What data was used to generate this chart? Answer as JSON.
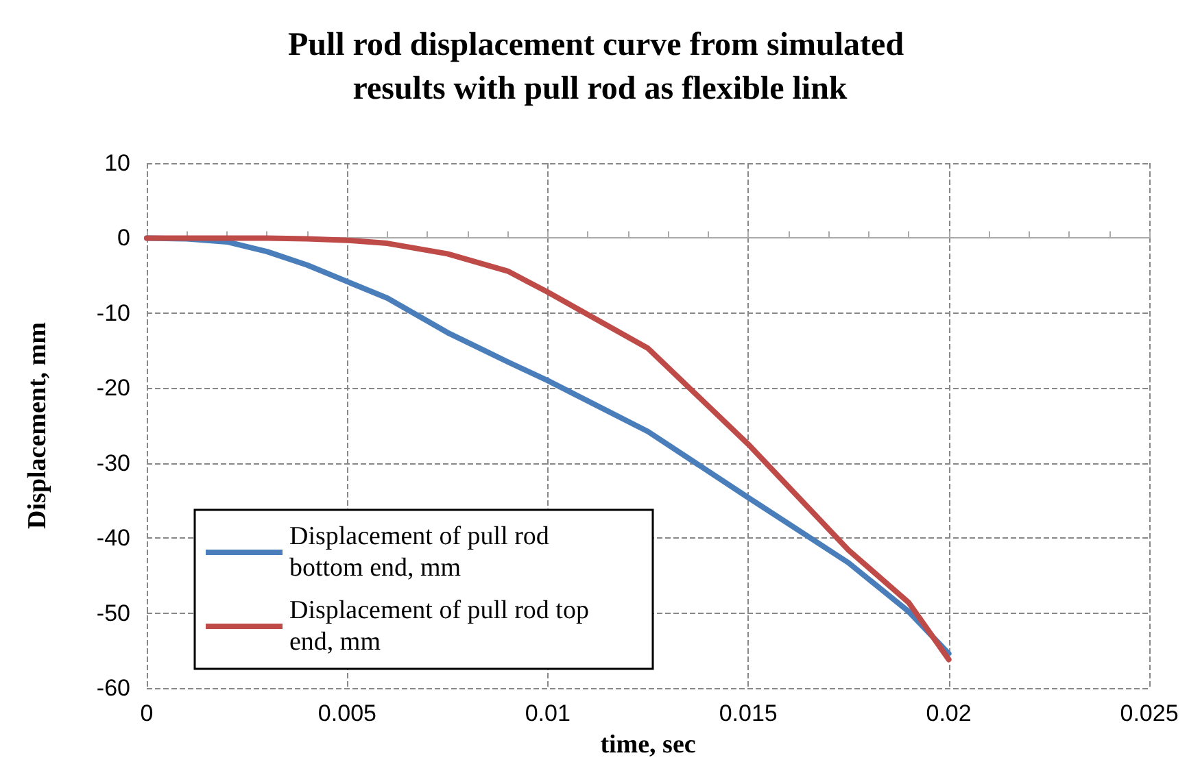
{
  "chart_data": {
    "type": "line",
    "title": "Pull rod displacement curve from simulated results with pull rod as flexible link",
    "xlabel": "time, sec",
    "ylabel": "Displacement, mm",
    "x": [
      0,
      0.001,
      0.002,
      0.003,
      0.004,
      0.005,
      0.006,
      0.0075,
      0.009,
      0.01,
      0.0125,
      0.015,
      0.0175,
      0.019,
      0.02
    ],
    "series": [
      {
        "name": "Displacement of pull rod bottom end, mm",
        "color": "#4a7ebb",
        "values": [
          0,
          -0.1,
          -0.5,
          -1.8,
          -3.6,
          -5.8,
          -8.0,
          -12.6,
          -16.5,
          -19,
          -25.8,
          -34.6,
          -43.3,
          -49.8,
          -55.4
        ]
      },
      {
        "name": "Displacement of pull rod top end, mm",
        "color": "#be4b48",
        "values": [
          0,
          0,
          0,
          0,
          -0.1,
          -0.3,
          -0.7,
          -2.1,
          -4.4,
          -7.2,
          -14.7,
          -27.5,
          -41.6,
          -48.6,
          -56.2
        ]
      }
    ],
    "xlim": [
      0,
      0.025
    ],
    "xticks": [
      0,
      0.005,
      0.01,
      0.015,
      0.02,
      0.025
    ],
    "ylim": [
      -60,
      10
    ],
    "yticks": [
      -60,
      -50,
      -40,
      -30,
      -20,
      -10,
      0,
      10
    ],
    "grid": true,
    "legend": "bottom left",
    "marker": "none",
    "line_style": "solid"
  }
}
